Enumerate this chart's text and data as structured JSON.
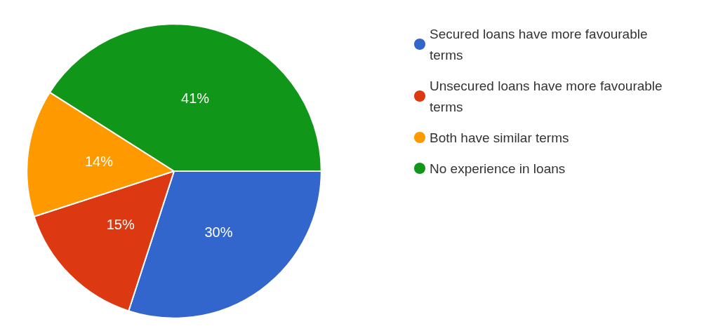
{
  "chart_data": {
    "type": "pie",
    "categories": [
      "Secured loans have more favourable terms",
      "Unsecured loans have more favourable terms",
      "Both have similar terms",
      "No experience in loans"
    ],
    "values": [
      30,
      15,
      14,
      41
    ],
    "colors": [
      "#3366cc",
      "#dc3912",
      "#ff9900",
      "#109618"
    ],
    "value_labels": [
      "30%",
      "15%",
      "14%",
      "41%"
    ],
    "legend": "right"
  }
}
